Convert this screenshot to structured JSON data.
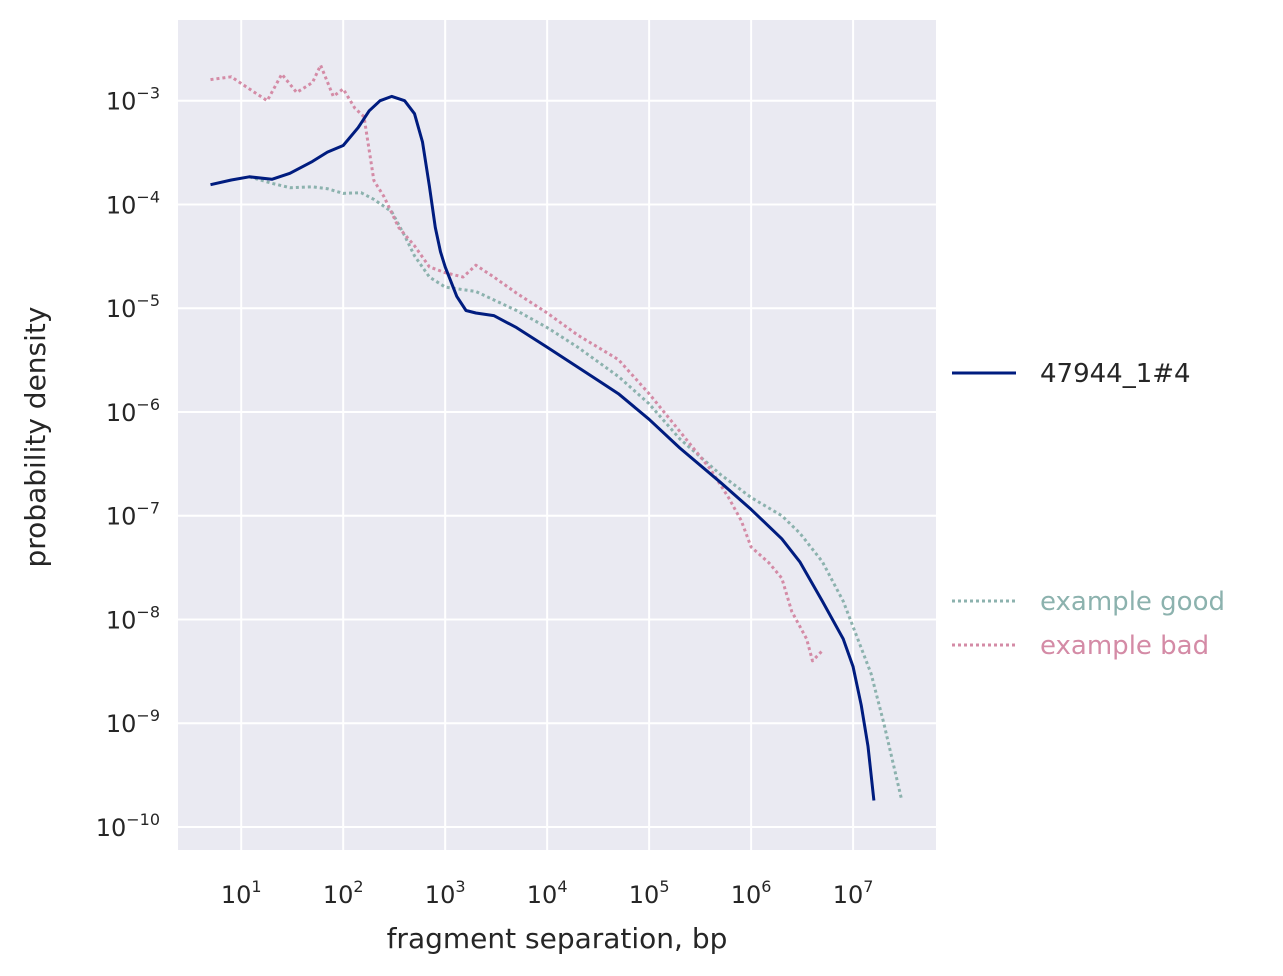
{
  "chart_data": {
    "type": "line",
    "xlabel": "fragment separation, bp",
    "ylabel": "probability density",
    "x_scale": "log",
    "y_scale": "log",
    "xlim": [
      2.4,
      65000000
    ],
    "ylim": [
      6e-11,
      0.006
    ],
    "x_ticks": [
      {
        "base": "10",
        "exp": "1",
        "value": 10
      },
      {
        "base": "10",
        "exp": "2",
        "value": 100
      },
      {
        "base": "10",
        "exp": "3",
        "value": 1000
      },
      {
        "base": "10",
        "exp": "4",
        "value": 10000
      },
      {
        "base": "10",
        "exp": "5",
        "value": 100000
      },
      {
        "base": "10",
        "exp": "6",
        "value": 1000000
      },
      {
        "base": "10",
        "exp": "7",
        "value": 10000000
      }
    ],
    "y_ticks": [
      {
        "base": "10",
        "exp": "−3",
        "value": 0.001
      },
      {
        "base": "10",
        "exp": "−4",
        "value": 0.0001
      },
      {
        "base": "10",
        "exp": "−5",
        "value": 1e-05
      },
      {
        "base": "10",
        "exp": "−6",
        "value": 1e-06
      },
      {
        "base": "10",
        "exp": "−7",
        "value": 1e-07
      },
      {
        "base": "10",
        "exp": "−8",
        "value": 1e-08
      },
      {
        "base": "10",
        "exp": "−9",
        "value": 1e-09
      },
      {
        "base": "10",
        "exp": "−10",
        "value": 1e-10
      }
    ],
    "grid": true,
    "legend_placement": "right",
    "background": "#eaeaf2",
    "series": [
      {
        "name": "47944_1#4",
        "color": "#001c7f",
        "style": "solid",
        "points": [
          [
            5,
            0.000155
          ],
          [
            8,
            0.000172
          ],
          [
            12,
            0.000185
          ],
          [
            20,
            0.000175
          ],
          [
            30,
            0.0002
          ],
          [
            50,
            0.00026
          ],
          [
            70,
            0.00032
          ],
          [
            100,
            0.00037
          ],
          [
            140,
            0.00055
          ],
          [
            180,
            0.0008
          ],
          [
            230,
            0.001
          ],
          [
            300,
            0.0011
          ],
          [
            400,
            0.001
          ],
          [
            500,
            0.00075
          ],
          [
            600,
            0.0004
          ],
          [
            700,
            0.00015
          ],
          [
            800,
            6e-05
          ],
          [
            900,
            3.5e-05
          ],
          [
            1000,
            2.5e-05
          ],
          [
            1300,
            1.3e-05
          ],
          [
            1600,
            9.5e-06
          ],
          [
            2000,
            9e-06
          ],
          [
            3000,
            8.5e-06
          ],
          [
            5000,
            6.5e-06
          ],
          [
            10000,
            4.2e-06
          ],
          [
            20000,
            2.7e-06
          ],
          [
            50000,
            1.5e-06
          ],
          [
            100000,
            8.5e-07
          ],
          [
            200000,
            4.5e-07
          ],
          [
            500000,
            2.1e-07
          ],
          [
            1000000,
            1.15e-07
          ],
          [
            2000000,
            6e-08
          ],
          [
            3000000,
            3.6e-08
          ],
          [
            5000000,
            1.5e-08
          ],
          [
            8000000,
            6.5e-09
          ],
          [
            10000000,
            3.5e-09
          ],
          [
            12000000,
            1.5e-09
          ],
          [
            14000000,
            6e-10
          ],
          [
            16000000,
            1.8e-10
          ]
        ]
      },
      {
        "name": "example good",
        "color": "#8cb2ae",
        "style": "dotted",
        "points": [
          [
            12,
            0.000185
          ],
          [
            20,
            0.00016
          ],
          [
            30,
            0.000145
          ],
          [
            50,
            0.000148
          ],
          [
            70,
            0.000142
          ],
          [
            100,
            0.000128
          ],
          [
            150,
            0.00013
          ],
          [
            200,
            0.000112
          ],
          [
            300,
            8.5e-05
          ],
          [
            400,
            5e-05
          ],
          [
            500,
            3.2e-05
          ],
          [
            700,
            2e-05
          ],
          [
            1000,
            1.6e-05
          ],
          [
            2000,
            1.45e-05
          ],
          [
            5000,
            9.5e-06
          ],
          [
            10000,
            6.5e-06
          ],
          [
            20000,
            4.2e-06
          ],
          [
            50000,
            2.2e-06
          ],
          [
            100000,
            1.2e-06
          ],
          [
            200000,
            5.5e-07
          ],
          [
            500000,
            2.5e-07
          ],
          [
            1000000,
            1.5e-07
          ],
          [
            2000000,
            1e-07
          ],
          [
            3000000,
            6.8e-08
          ],
          [
            5000000,
            3.6e-08
          ],
          [
            8000000,
            1.5e-08
          ],
          [
            10000000,
            8.5e-09
          ],
          [
            15000000,
            3e-09
          ],
          [
            20000000,
            1e-09
          ],
          [
            30000000,
            1.8e-10
          ]
        ]
      },
      {
        "name": "example bad",
        "color": "#d48ba6",
        "style": "dotted",
        "points": [
          [
            5,
            0.0016
          ],
          [
            8,
            0.0017
          ],
          [
            12,
            0.0013
          ],
          [
            18,
            0.001
          ],
          [
            25,
            0.0018
          ],
          [
            35,
            0.0012
          ],
          [
            50,
            0.0015
          ],
          [
            60,
            0.0022
          ],
          [
            80,
            0.0011
          ],
          [
            100,
            0.0013
          ],
          [
            130,
            0.00085
          ],
          [
            160,
            0.0007
          ],
          [
            200,
            0.00017
          ],
          [
            250,
            0.00012
          ],
          [
            350,
            6e-05
          ],
          [
            500,
            4e-05
          ],
          [
            700,
            2.5e-05
          ],
          [
            1000,
            2.2e-05
          ],
          [
            1500,
            2e-05
          ],
          [
            2000,
            2.6e-05
          ],
          [
            3000,
            2e-05
          ],
          [
            5000,
            1.4e-05
          ],
          [
            10000,
            9e-06
          ],
          [
            20000,
            5.5e-06
          ],
          [
            50000,
            3.2e-06
          ],
          [
            100000,
            1.5e-06
          ],
          [
            200000,
            6.5e-07
          ],
          [
            400000,
            2.8e-07
          ],
          [
            600000,
            1.5e-07
          ],
          [
            800000,
            9e-08
          ],
          [
            1000000,
            5e-08
          ],
          [
            1500000,
            3.5e-08
          ],
          [
            2000000,
            2.5e-08
          ],
          [
            2500000,
            1.2e-08
          ],
          [
            3500000,
            6.5e-09
          ],
          [
            4000000,
            4e-09
          ],
          [
            5000000,
            5e-09
          ]
        ]
      }
    ]
  }
}
